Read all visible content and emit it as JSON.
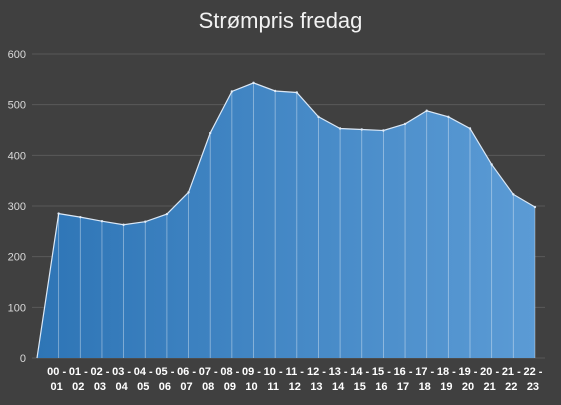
{
  "chart_data": {
    "type": "area",
    "title": "Strømpris fredag",
    "xlabel": "",
    "ylabel": "",
    "ylim": [
      0,
      600
    ],
    "yticks": [
      0,
      100,
      200,
      300,
      400,
      500,
      600
    ],
    "grid": true,
    "legend": "none",
    "categories": [
      "00 - 01",
      "01 - 02",
      "02 - 03",
      "03 - 04",
      "04 - 05",
      "05 - 06",
      "06 - 07",
      "07 - 08",
      "08 - 09",
      "09 - 10",
      "10 - 11",
      "11 - 12",
      "12 - 13",
      "13 - 14",
      "14 - 15",
      "15 - 16",
      "16 - 17",
      "17 - 18",
      "18 - 19",
      "19 - 20",
      "20 - 21",
      "21 - 22",
      "22 - 23"
    ],
    "tick_top": [
      "00 -",
      "01 -",
      "02 -",
      "03 -",
      "04 -",
      "05 -",
      "06 -",
      "07 -",
      "08 -",
      "09 -",
      "10 -",
      "11 -",
      "12 -",
      "13 -",
      "14 -",
      "15 -",
      "16 -",
      "17 -",
      "18 -",
      "19 -",
      "20 -",
      "21 -",
      "22 -"
    ],
    "tick_bottom": [
      "01",
      "02",
      "03",
      "04",
      "05",
      "06",
      "07",
      "08",
      "09",
      "10",
      "11",
      "12",
      "13",
      "14",
      "15",
      "16",
      "17",
      "18",
      "19",
      "20",
      "21",
      "22",
      "23"
    ],
    "values": [
      285,
      278,
      270,
      263,
      269,
      284,
      327,
      444,
      526,
      543,
      527,
      524,
      476,
      453,
      451,
      449,
      462,
      488,
      476,
      453,
      382,
      323,
      298
    ],
    "start_value": 0,
    "colors": {
      "background": "#404040",
      "fill_left": "#2e75b6",
      "fill_right": "#5b9bd5",
      "line": "#dbe8f6",
      "grid": "#595959"
    }
  }
}
